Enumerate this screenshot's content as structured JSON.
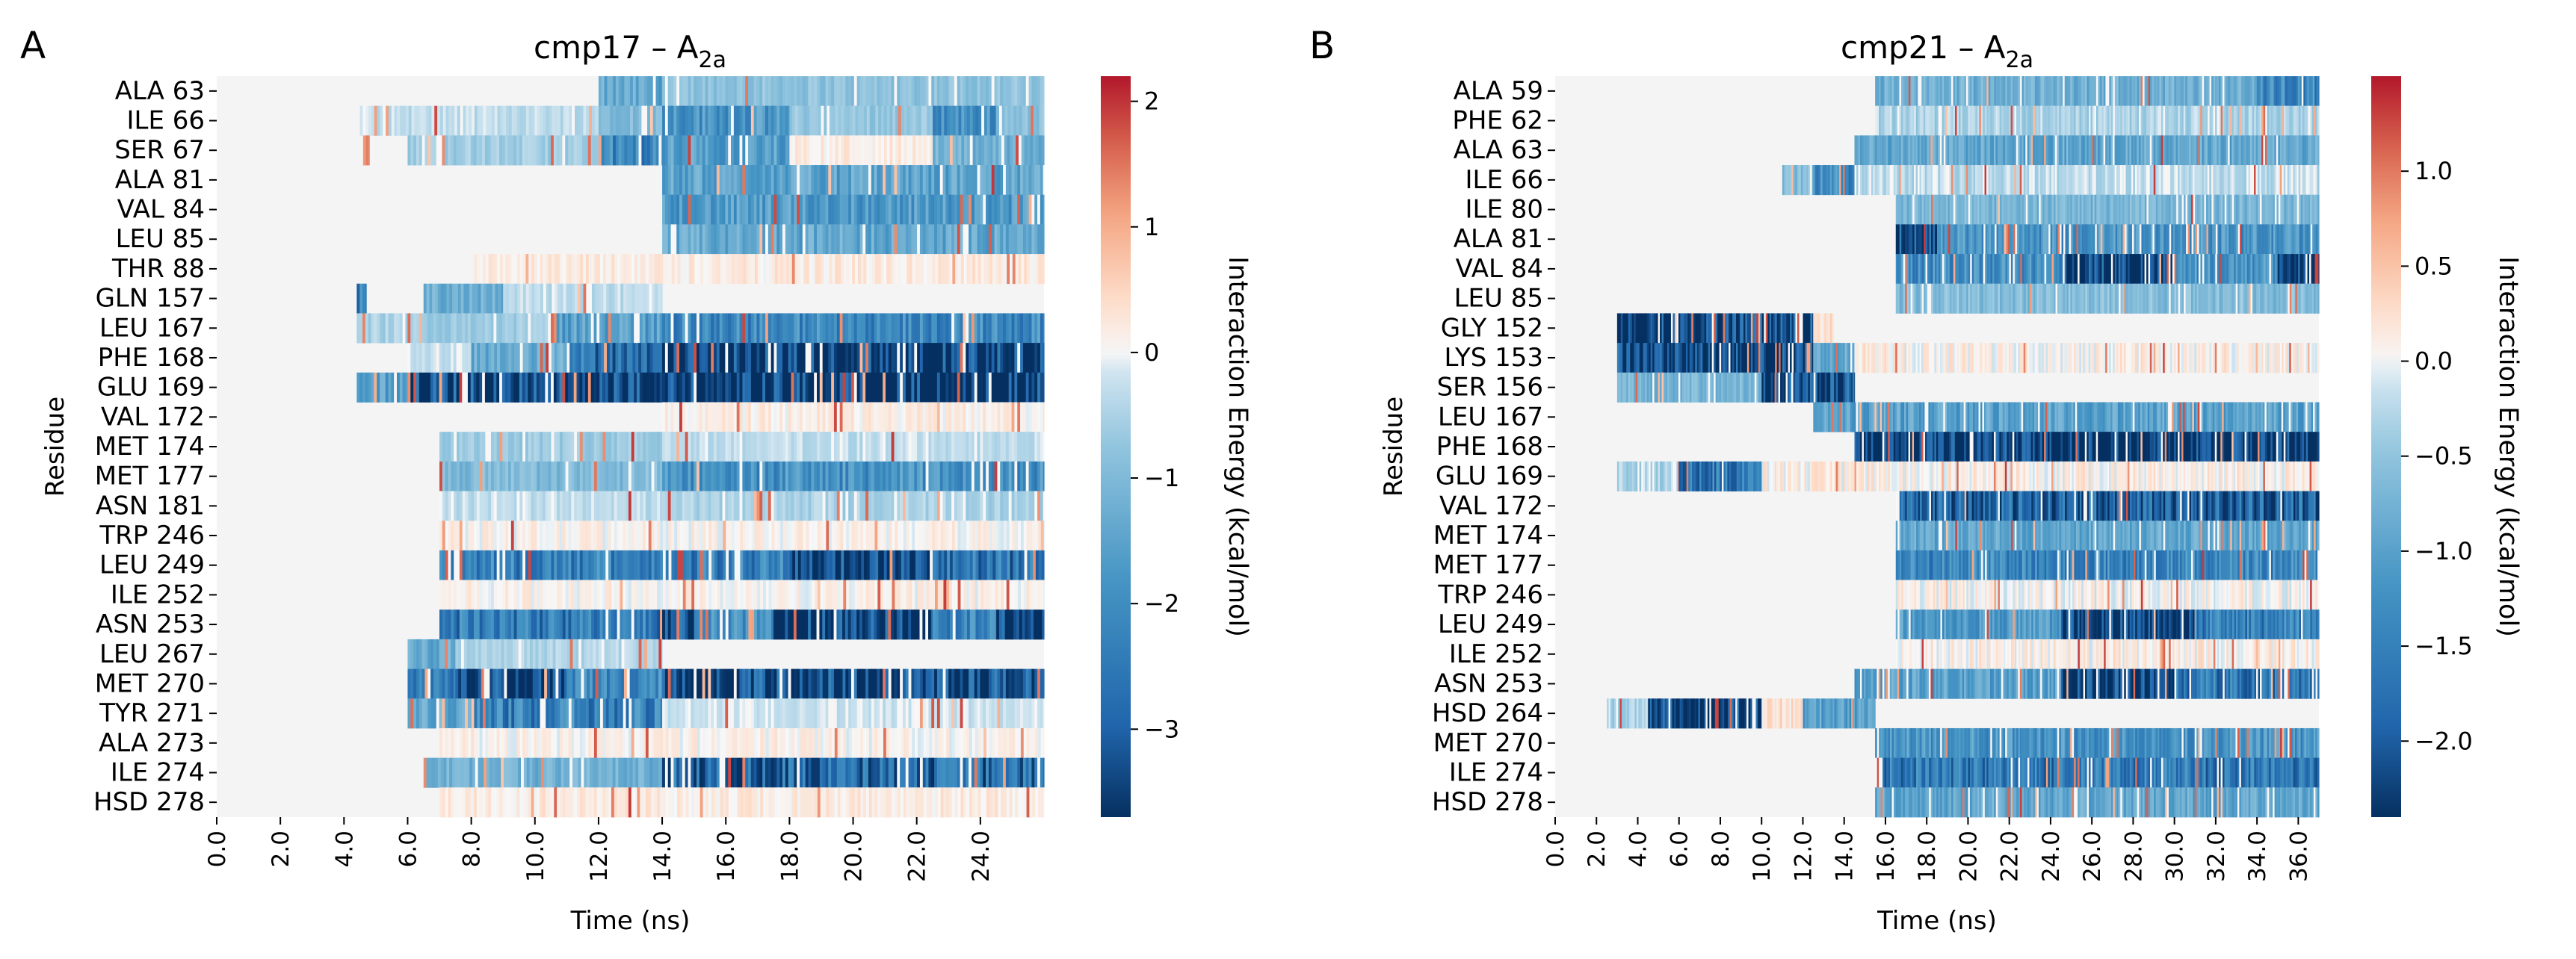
{
  "chart_data": [
    {
      "type": "heatmap",
      "panel": "A",
      "title_main": "cmp17 – A",
      "title_sub": "2a",
      "xlabel": "Time (ns)",
      "ylabel": "Residue",
      "xlim": [
        0,
        26
      ],
      "xticks": [
        "0.0",
        "2.0",
        "4.0",
        "6.0",
        "8.0",
        "10.0",
        "12.0",
        "14.0",
        "16.0",
        "18.0",
        "20.0",
        "22.0",
        "24.0"
      ],
      "residues": [
        "ALA 63",
        "ILE 66",
        "SER 67",
        "ALA 81",
        "VAL 84",
        "LEU 85",
        "THR 88",
        "GLN 157",
        "LEU 167",
        "PHE 168",
        "GLU 169",
        "VAL 172",
        "MET 174",
        "MET 177",
        "ASN 181",
        "TRP 246",
        "LEU 249",
        "ILE 252",
        "ASN 253",
        "LEU 267",
        "MET 270",
        "TYR 271",
        "ALA 273",
        "ILE 274",
        "HSD 278"
      ],
      "colorbar": {
        "label": "Interaction Energy (kcal/mol)",
        "vmin": -3.7,
        "vmax": 2.2,
        "ticks": [
          "2",
          "1",
          "0",
          "−1",
          "−2",
          "−3"
        ],
        "tick_values": [
          2,
          1,
          0,
          -1,
          -2,
          -3
        ]
      },
      "profiles": [
        {
          "residue": "ALA 63",
          "segments": [
            [
              12.0,
              14.0,
              -1.4
            ],
            [
              14.0,
              26.0,
              -0.8
            ]
          ]
        },
        {
          "residue": "ILE 66",
          "segments": [
            [
              4.5,
              12.0,
              -0.3
            ],
            [
              12.0,
              14.0,
              -0.9
            ],
            [
              14.0,
              18.0,
              -1.8
            ],
            [
              18.0,
              22.5,
              -0.7
            ],
            [
              22.5,
              24.5,
              -1.9
            ],
            [
              24.5,
              26.0,
              -0.8
            ]
          ]
        },
        {
          "residue": "SER 67",
          "segments": [
            [
              4.6,
              4.8,
              1.2
            ],
            [
              6.0,
              12.0,
              -0.6
            ],
            [
              12.0,
              14.0,
              -2.2
            ],
            [
              14.0,
              18.0,
              -1.6
            ],
            [
              18.0,
              22.5,
              0.2
            ],
            [
              22.5,
              26.0,
              -1.2
            ]
          ]
        },
        {
          "residue": "ALA 81",
          "segments": [
            [
              14.0,
              26.0,
              -1.5
            ]
          ]
        },
        {
          "residue": "VAL 84",
          "segments": [
            [
              14.0,
              26.0,
              -1.7
            ]
          ]
        },
        {
          "residue": "LEU 85",
          "segments": [
            [
              14.0,
              26.0,
              -1.4
            ]
          ]
        },
        {
          "residue": "THR 88",
          "segments": [
            [
              8.0,
              26.0,
              0.2
            ]
          ]
        },
        {
          "residue": "GLN 157",
          "segments": [
            [
              4.4,
              4.7,
              -2.5
            ],
            [
              6.5,
              9.0,
              -1.2
            ],
            [
              9.0,
              14.0,
              -0.3
            ]
          ]
        },
        {
          "residue": "LEU 167",
          "segments": [
            [
              4.4,
              6.0,
              -0.5
            ],
            [
              6.0,
              10.5,
              -0.6
            ],
            [
              10.5,
              14.0,
              -1.6
            ],
            [
              14.0,
              26.0,
              -2.1
            ]
          ]
        },
        {
          "residue": "PHE 168",
          "segments": [
            [
              6.0,
              8.0,
              -0.2
            ],
            [
              8.0,
              11.0,
              -1.3
            ],
            [
              11.0,
              14.0,
              -2.6
            ],
            [
              14.0,
              26.0,
              -3.7
            ]
          ]
        },
        {
          "residue": "GLU 169",
          "segments": [
            [
              4.4,
              6.0,
              -1.6
            ],
            [
              6.0,
              14.0,
              -3.4
            ],
            [
              14.0,
              26.0,
              -3.7
            ]
          ]
        },
        {
          "residue": "VAL 172",
          "segments": [
            [
              14.0,
              26.0,
              0.15
            ]
          ]
        },
        {
          "residue": "MET 174",
          "segments": [
            [
              7.0,
              14.0,
              -0.6
            ],
            [
              14.0,
              26.0,
              -0.3
            ]
          ]
        },
        {
          "residue": "MET 177",
          "segments": [
            [
              7.0,
              14.0,
              -1.0
            ],
            [
              14.0,
              26.0,
              -1.9
            ]
          ]
        },
        {
          "residue": "ASN 181",
          "segments": [
            [
              7.0,
              14.0,
              -0.3
            ],
            [
              14.0,
              26.0,
              -0.5
            ]
          ]
        },
        {
          "residue": "TRP 246",
          "segments": [
            [
              7.0,
              26.0,
              0.1
            ]
          ]
        },
        {
          "residue": "LEU 249",
          "segments": [
            [
              7.0,
              18.0,
              -2.3
            ],
            [
              18.0,
              22.5,
              -3.5
            ],
            [
              22.5,
              26.0,
              -2.6
            ]
          ]
        },
        {
          "residue": "ILE 252",
          "segments": [
            [
              7.0,
              26.0,
              0.1
            ]
          ]
        },
        {
          "residue": "ASN 253",
          "segments": [
            [
              7.0,
              14.0,
              -2.4
            ],
            [
              14.0,
              15.0,
              -3.3
            ],
            [
              15.0,
              17.5,
              -2.0
            ],
            [
              17.5,
              22.5,
              -3.6
            ],
            [
              22.5,
              24.5,
              -2.2
            ],
            [
              24.5,
              26.0,
              -3.5
            ]
          ]
        },
        {
          "residue": "LEU 267",
          "segments": [
            [
              6.0,
              7.5,
              -1.3
            ],
            [
              7.5,
              14.0,
              -0.4
            ]
          ]
        },
        {
          "residue": "MET 270",
          "segments": [
            [
              6.0,
              7.5,
              -2.2
            ],
            [
              7.5,
              11.0,
              -3.5
            ],
            [
              11.0,
              14.0,
              -2.1
            ],
            [
              14.0,
              26.0,
              -3.2
            ]
          ]
        },
        {
          "residue": "TYR 271",
          "segments": [
            [
              6.0,
              8.0,
              -1.4
            ],
            [
              8.0,
              14.0,
              -2.3
            ],
            [
              14.0,
              26.0,
              -0.2
            ]
          ]
        },
        {
          "residue": "ALA 273",
          "segments": [
            [
              7.0,
              26.0,
              0.1
            ]
          ]
        },
        {
          "residue": "ILE 274",
          "segments": [
            [
              6.5,
              14.0,
              -1.2
            ],
            [
              14.0,
              26.0,
              -2.8
            ]
          ]
        },
        {
          "residue": "HSD 278",
          "segments": [
            [
              7.0,
              26.0,
              0.2
            ]
          ]
        }
      ]
    },
    {
      "type": "heatmap",
      "panel": "B",
      "title_main": "cmp21 – A",
      "title_sub": "2a",
      "xlabel": "Time (ns)",
      "ylabel": "Residue",
      "xlim": [
        0,
        37
      ],
      "xticks": [
        "0.0",
        "2.0",
        "4.0",
        "6.0",
        "8.0",
        "10.0",
        "12.0",
        "14.0",
        "16.0",
        "18.0",
        "20.0",
        "22.0",
        "24.0",
        "26.0",
        "28.0",
        "30.0",
        "32.0",
        "34.0",
        "36.0"
      ],
      "residues": [
        "ALA 59",
        "PHE 62",
        "ALA 63",
        "ILE 66",
        "ILE 80",
        "ALA 81",
        "VAL 84",
        "LEU 85",
        "GLY 152",
        "LYS 153",
        "SER 156",
        "LEU 167",
        "PHE 168",
        "GLU 169",
        "VAL 172",
        "MET 174",
        "MET 177",
        "TRP 246",
        "LEU 249",
        "ILE 252",
        "ASN 253",
        "HSD 264",
        "MET 270",
        "ILE 274",
        "HSD 278"
      ],
      "colorbar": {
        "label": "Interaction Energy (kcal/mol)",
        "vmin": -2.4,
        "vmax": 1.5,
        "ticks": [
          "1.0",
          "0.5",
          "0.0",
          "−0.5",
          "−1.0",
          "−1.5",
          "−2.0"
        ],
        "tick_values": [
          1.0,
          0.5,
          0.0,
          -0.5,
          -1.0,
          -1.5,
          -2.0
        ]
      },
      "profiles": [
        {
          "residue": "ALA 59",
          "segments": [
            [
              15.5,
              34.0,
              -0.8
            ],
            [
              34.0,
              37.0,
              -1.4
            ]
          ]
        },
        {
          "residue": "PHE 62",
          "segments": [
            [
              15.5,
              37.0,
              -0.3
            ]
          ]
        },
        {
          "residue": "ALA 63",
          "segments": [
            [
              14.5,
              37.0,
              -0.9
            ]
          ]
        },
        {
          "residue": "ILE 66",
          "segments": [
            [
              11.0,
              12.5,
              -0.6
            ],
            [
              12.5,
              14.5,
              -1.3
            ],
            [
              14.5,
              37.0,
              -0.2
            ]
          ]
        },
        {
          "residue": "ILE 80",
          "segments": [
            [
              16.5,
              37.0,
              -0.7
            ]
          ]
        },
        {
          "residue": "ALA 81",
          "segments": [
            [
              16.5,
              18.5,
              -2.2
            ],
            [
              18.5,
              37.0,
              -1.2
            ]
          ]
        },
        {
          "residue": "VAL 84",
          "segments": [
            [
              16.5,
              24.5,
              -1.3
            ],
            [
              24.5,
              30.0,
              -2.3
            ],
            [
              30.0,
              35.0,
              -1.2
            ],
            [
              35.0,
              37.0,
              -2.2
            ]
          ]
        },
        {
          "residue": "LEU 85",
          "segments": [
            [
              16.5,
              37.0,
              -0.6
            ]
          ]
        },
        {
          "residue": "GLY 152",
          "segments": [
            [
              3.0,
              12.5,
              -2.3
            ],
            [
              12.5,
              13.5,
              0.3
            ]
          ]
        },
        {
          "residue": "LYS 153",
          "segments": [
            [
              3.0,
              12.5,
              -2.3
            ],
            [
              12.5,
              14.5,
              -0.9
            ],
            [
              14.5,
              37.0,
              0.1
            ]
          ]
        },
        {
          "residue": "SER 156",
          "segments": [
            [
              3.0,
              10.0,
              -0.7
            ],
            [
              10.0,
              14.5,
              -2.1
            ]
          ]
        },
        {
          "residue": "LEU 167",
          "segments": [
            [
              12.5,
              37.0,
              -1.0
            ]
          ]
        },
        {
          "residue": "PHE 168",
          "segments": [
            [
              14.5,
              37.0,
              -2.4
            ]
          ]
        },
        {
          "residue": "GLU 169",
          "segments": [
            [
              3.0,
              6.0,
              -0.3
            ],
            [
              6.0,
              10.0,
              -1.6
            ],
            [
              10.0,
              37.0,
              0.1
            ]
          ]
        },
        {
          "residue": "VAL 172",
          "segments": [
            [
              16.5,
              37.0,
              -1.9
            ]
          ]
        },
        {
          "residue": "MET 174",
          "segments": [
            [
              16.5,
              37.0,
              -0.9
            ]
          ]
        },
        {
          "residue": "MET 177",
          "segments": [
            [
              16.5,
              37.0,
              -1.4
            ]
          ]
        },
        {
          "residue": "TRP 246",
          "segments": [
            [
              16.5,
              37.0,
              0.05
            ]
          ]
        },
        {
          "residue": "LEU 249",
          "segments": [
            [
              16.5,
              24.5,
              -1.1
            ],
            [
              24.5,
              31.0,
              -2.3
            ],
            [
              31.0,
              37.0,
              -1.5
            ]
          ]
        },
        {
          "residue": "ILE 252",
          "segments": [
            [
              16.5,
              37.0,
              0.1
            ]
          ]
        },
        {
          "residue": "ASN 253",
          "segments": [
            [
              14.5,
              24.5,
              -1.0
            ],
            [
              24.5,
              30.0,
              -2.3
            ],
            [
              30.0,
              37.0,
              -1.6
            ]
          ]
        },
        {
          "residue": "HSD 264",
          "segments": [
            [
              2.5,
              4.5,
              -0.3
            ],
            [
              4.5,
              10.0,
              -2.3
            ],
            [
              10.0,
              12.0,
              0.2
            ],
            [
              12.0,
              15.5,
              -1.0
            ]
          ]
        },
        {
          "residue": "MET 270",
          "segments": [
            [
              15.5,
              37.0,
              -1.2
            ]
          ]
        },
        {
          "residue": "ILE 274",
          "segments": [
            [
              15.5,
              37.0,
              -1.6
            ]
          ]
        },
        {
          "residue": "HSD 278",
          "segments": [
            [
              15.5,
              37.0,
              -0.9
            ]
          ]
        }
      ]
    }
  ]
}
